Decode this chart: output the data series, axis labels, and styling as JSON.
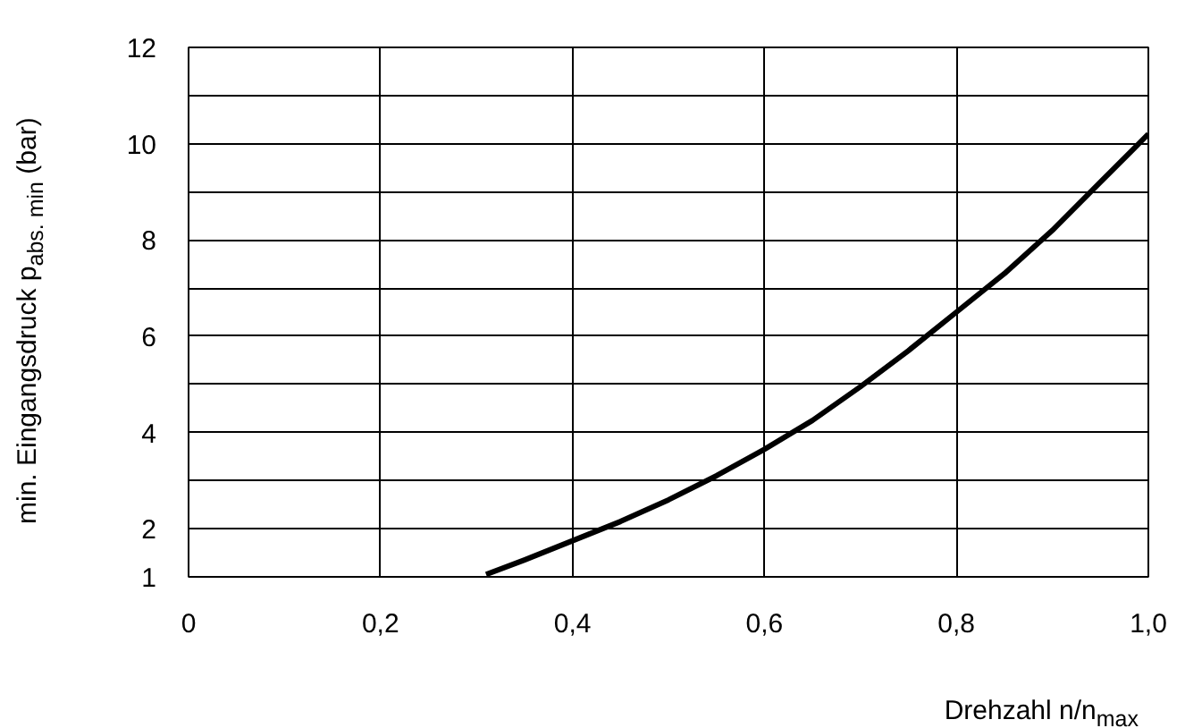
{
  "chart_data": {
    "type": "line",
    "xlabel": "Drehzahl n/n$_{max}$",
    "ylabel": "min. Eingangsdruck p$_{abs. min}$ (bar)",
    "x": [
      0.31,
      0.35,
      0.4,
      0.45,
      0.5,
      0.55,
      0.6,
      0.65,
      0.7,
      0.75,
      0.8,
      0.85,
      0.9,
      0.95,
      1.0
    ],
    "series": [
      {
        "color": "#000000",
        "values": [
          1.05,
          1.35,
          1.75,
          2.15,
          2.6,
          3.1,
          3.65,
          4.25,
          4.95,
          5.7,
          6.5,
          7.3,
          8.2,
          9.2,
          10.2
        ]
      }
    ],
    "xlim": [
      0,
      1.0
    ],
    "xticks": [
      0,
      {
        "value": 0.2,
        "label": "0,2"
      },
      {
        "value": 0.4,
        "label": "0,4"
      },
      {
        "value": 0.6,
        "label": "0,6"
      },
      {
        "value": 0.8,
        "label": "0,8"
      },
      {
        "value": 1.0,
        "label": "1,0"
      }
    ],
    "ylim": [
      1,
      12
    ],
    "yticks": [
      1,
      {
        "value": 2,
        "label": "2"
      },
      {
        "value": 3,
        "label": null
      },
      4,
      {
        "value": 5,
        "label": null
      },
      6,
      {
        "value": 7,
        "label": null
      },
      8,
      {
        "value": 9,
        "label": null
      },
      10,
      {
        "value": 11,
        "label": null
      },
      12
    ],
    "grid": true,
    "line_style": "solid",
    "marker": "none"
  }
}
